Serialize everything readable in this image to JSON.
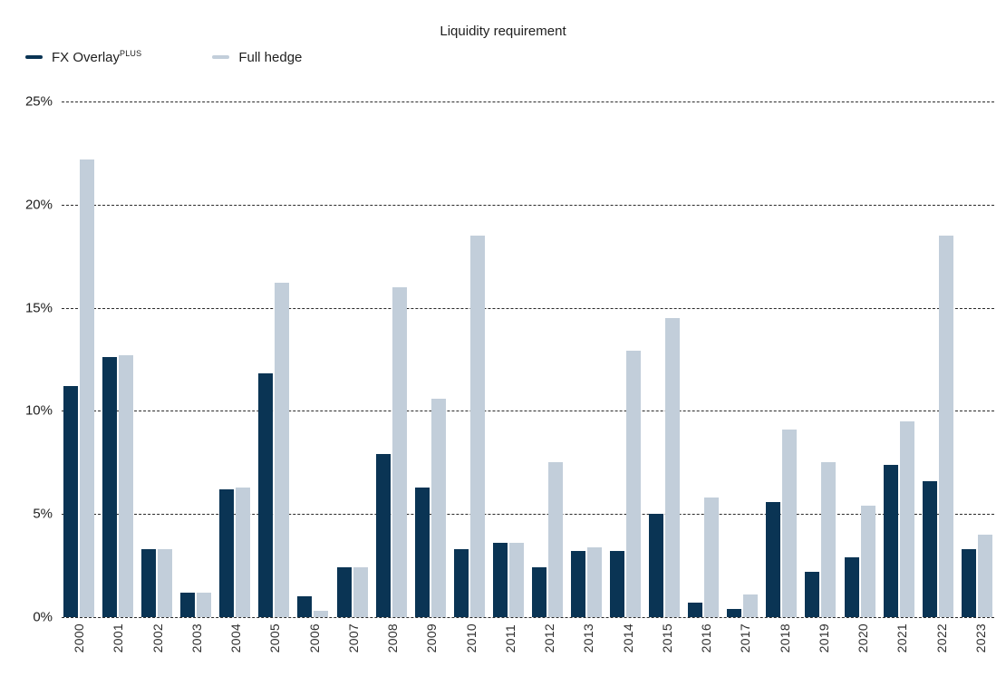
{
  "title": "Liquidity requirement",
  "colors": {
    "fx_overlay": "#0A3454",
    "full_hedge": "#C2CEDA"
  },
  "legend": [
    {
      "label": "FX Overlay",
      "sup": "PLUS",
      "color": "#0A3454"
    },
    {
      "label": "Full hedge",
      "sup": "",
      "color": "#C2CEDA"
    }
  ],
  "chart_data": {
    "type": "bar",
    "title": "Liquidity requirement",
    "categories": [
      "2000",
      "2001",
      "2002",
      "2003",
      "2004",
      "2005",
      "2006",
      "2007",
      "2008",
      "2009",
      "2010",
      "2011",
      "2012",
      "2013",
      "2014",
      "2015",
      "2016",
      "2017",
      "2018",
      "2019",
      "2020",
      "2021",
      "2022",
      "2023"
    ],
    "series": [
      {
        "name": "FX OverlayPLUS",
        "key": "fx-overlay-plus",
        "color": "#0A3454",
        "values": [
          11.2,
          12.6,
          3.3,
          1.2,
          6.2,
          11.8,
          1.0,
          2.4,
          7.9,
          6.3,
          3.3,
          3.6,
          2.4,
          3.2,
          3.2,
          5.0,
          0.7,
          0.4,
          5.6,
          2.2,
          2.9,
          7.4,
          6.6,
          3.3
        ]
      },
      {
        "name": "Full hedge",
        "key": "full-hedge",
        "color": "#C2CEDA",
        "values": [
          22.2,
          12.7,
          3.3,
          1.2,
          6.3,
          16.2,
          0.3,
          2.4,
          16.0,
          10.6,
          18.5,
          3.6,
          7.5,
          3.4,
          12.9,
          14.5,
          5.8,
          1.1,
          9.1,
          7.5,
          5.4,
          9.5,
          18.5,
          4.0
        ]
      }
    ],
    "xlabel": "",
    "ylabel": "",
    "ylim": [
      0,
      25
    ],
    "yticks": [
      "25%",
      "20%",
      "15%",
      "10%",
      "5%",
      "0%"
    ],
    "grid": "horizontal-dashed",
    "legend_position": "top-left"
  }
}
